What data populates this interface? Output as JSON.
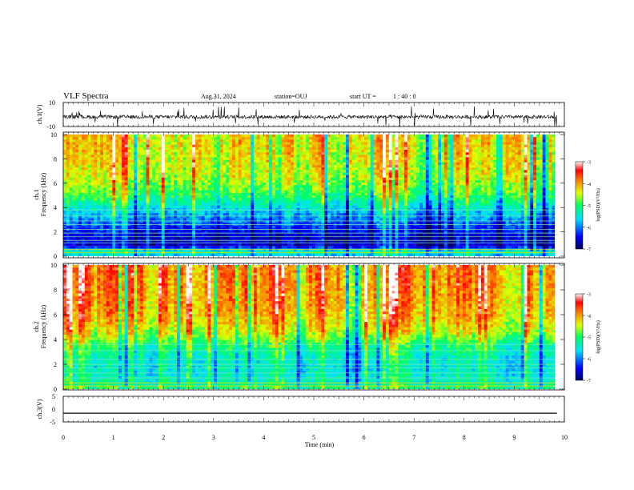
{
  "header": {
    "title": "VLF Spectra",
    "date": "Aug.31, 2024",
    "station": "station=OUJ",
    "start_label": "start  UT =",
    "start_value": "1 : 40 : 0"
  },
  "chart_data": [
    {
      "type": "line",
      "panel": "ch1-waveform",
      "ylabel": "ch.1(V)",
      "ylim": [
        -10,
        10
      ],
      "ytick_labels": [
        "10",
        "-10"
      ],
      "xlim": [
        0,
        9.85
      ],
      "baseline": -2,
      "noise_amplitude": 1.5,
      "spike_amplitude_range": [
        3,
        9
      ]
    },
    {
      "type": "heatmap",
      "panel": "ch1-spectrogram",
      "ylabel_line1": "ch.1",
      "ylabel_line2": "Frequency  (kHz)",
      "ylim": [
        0,
        10
      ],
      "ytick_labels": [
        "0",
        "2",
        "4",
        "6",
        "8",
        "10"
      ],
      "xlim": [
        0,
        9.85
      ],
      "colorbar": {
        "label": "log(PSD)(V²/Hz)",
        "range": [
          -7,
          -3
        ],
        "tick_labels": [
          "-3",
          "-4",
          "-5",
          "-6",
          "-7"
        ]
      },
      "profile": [
        {
          "f": 0.0,
          "v": -5.8
        },
        {
          "f": 0.4,
          "v": -5.2
        },
        {
          "f": 0.8,
          "v": -6.6
        },
        {
          "f": 1.5,
          "v": -6.7
        },
        {
          "f": 2.5,
          "v": -6.3
        },
        {
          "f": 3.5,
          "v": -5.8
        },
        {
          "f": 5.0,
          "v": -5.0
        },
        {
          "f": 6.5,
          "v": -4.55
        },
        {
          "f": 8.0,
          "v": -4.4
        },
        {
          "f": 10.0,
          "v": -4.3
        }
      ],
      "line_frequencies_khz": [
        0.3,
        0.55,
        1.1,
        1.3,
        1.6,
        1.9,
        2.2,
        2.6,
        2.9,
        3.3,
        3.8
      ]
    },
    {
      "type": "heatmap",
      "panel": "ch2-spectrogram",
      "ylabel_line1": "ch.2",
      "ylabel_line2": "Frequency  (kHz)",
      "ylim": [
        0,
        10
      ],
      "ytick_labels": [
        "0",
        "2",
        "4",
        "6",
        "8",
        "10"
      ],
      "xlim": [
        0,
        9.85
      ],
      "colorbar": {
        "label": "log(PSD)(V²/Hz)",
        "range": [
          -7,
          -3
        ],
        "tick_labels": [
          "-3",
          "-4",
          "-5",
          "-6",
          "-7"
        ]
      },
      "profile": [
        {
          "f": 0.0,
          "v": -5.0
        },
        {
          "f": 0.5,
          "v": -5.3
        },
        {
          "f": 1.5,
          "v": -5.5
        },
        {
          "f": 2.5,
          "v": -5.4
        },
        {
          "f": 3.5,
          "v": -5.1
        },
        {
          "f": 4.5,
          "v": -4.5
        },
        {
          "f": 6.0,
          "v": -4.1
        },
        {
          "f": 8.0,
          "v": -3.95
        },
        {
          "f": 10.0,
          "v": -3.9
        }
      ],
      "line_frequencies_khz": [
        0.25,
        0.5,
        0.9,
        1.3,
        1.7,
        2.0,
        2.4,
        3.1,
        3.6
      ]
    },
    {
      "type": "line",
      "panel": "ch3-waveform",
      "ylabel": "ch.3(V)",
      "ylim": [
        -5,
        5
      ],
      "ytick_labels": [
        "5",
        "0",
        "-5"
      ],
      "xlim": [
        0,
        9.85
      ],
      "constant_value": -1.6
    }
  ],
  "xaxis": {
    "label": "Time  (min)",
    "tick_labels": [
      "0",
      "1",
      "2",
      "3",
      "4",
      "5",
      "6",
      "7",
      "8",
      "9",
      "10"
    ],
    "xlim": [
      0,
      10
    ]
  }
}
